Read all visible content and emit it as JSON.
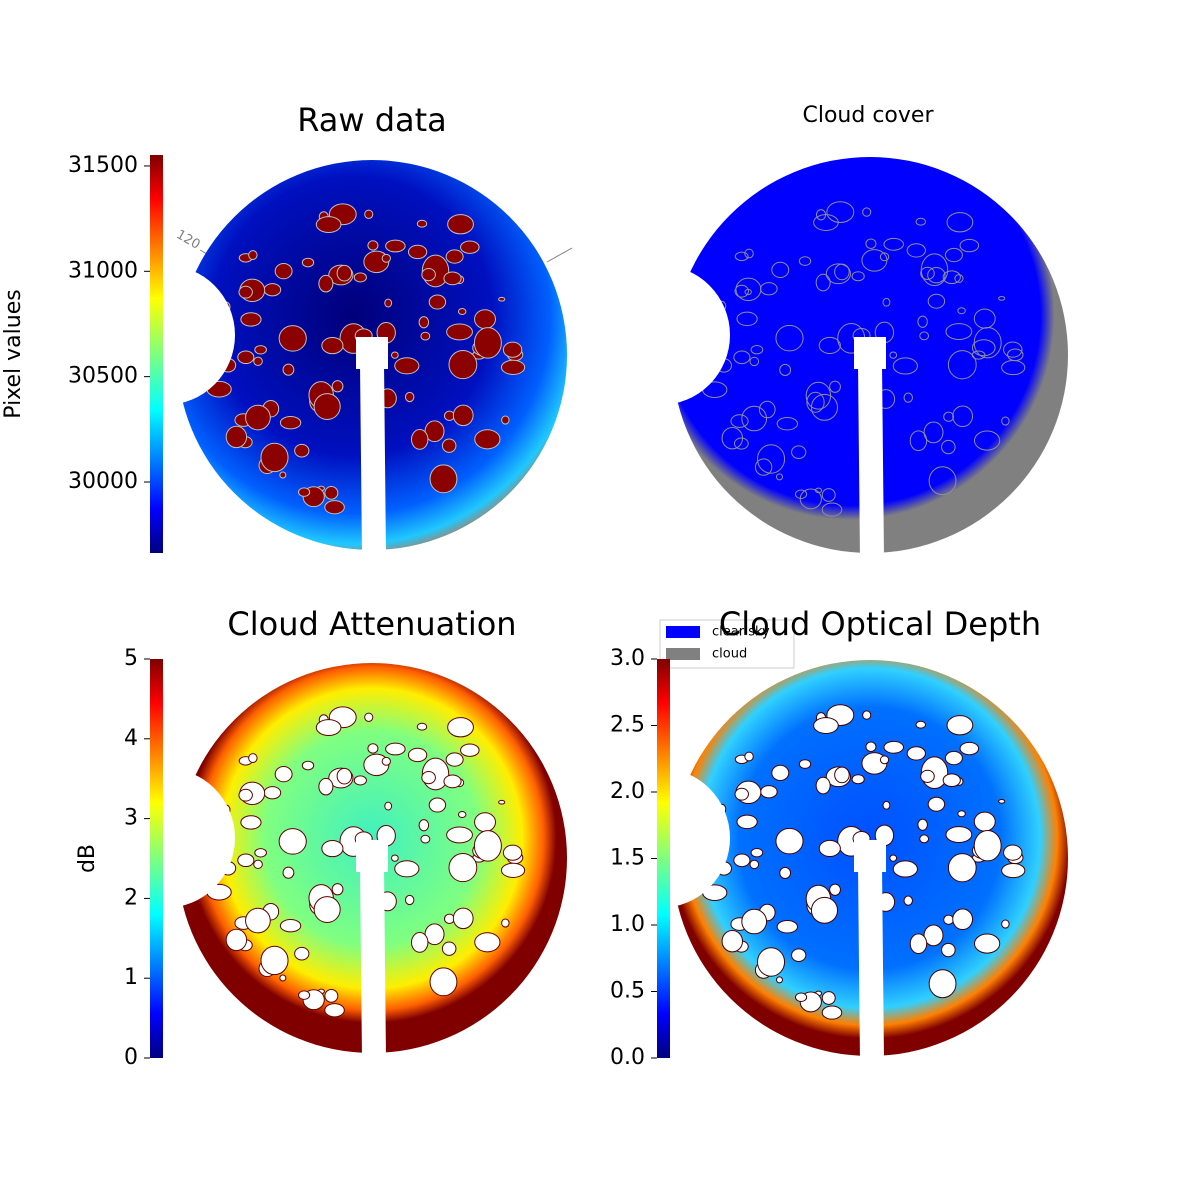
{
  "chart_data": [
    {
      "type": "image",
      "title": "Raw data",
      "colorbar_label": "Pixel values",
      "colormap": "jet",
      "ylim": [
        29663,
        31552
      ],
      "yticks": [
        30000,
        30500,
        31000,
        31500
      ],
      "annotations": [
        "120"
      ]
    },
    {
      "type": "image",
      "title": "Cloud cover",
      "series": [
        {
          "name": "clear sky",
          "color": "#0000ff"
        },
        {
          "name": "cloud",
          "color": "#808080"
        }
      ]
    },
    {
      "type": "image",
      "title": "Cloud Attenuation",
      "colorbar_label": "dB",
      "colormap": "jet",
      "ylim": [
        0,
        5
      ],
      "yticks": [
        0,
        1,
        2,
        3,
        4,
        5
      ]
    },
    {
      "type": "image",
      "title": "Cloud Optical Depth",
      "colormap": "jet",
      "ylim": [
        0,
        3
      ],
      "yticks": [
        {
          "value": 0,
          "label": "0.0"
        },
        0.5,
        {
          "value": 1,
          "label": "1.0"
        },
        1.5,
        {
          "value": 2,
          "label": "2.0"
        },
        2.5,
        {
          "value": 3,
          "label": "3.0"
        }
      ]
    }
  ]
}
